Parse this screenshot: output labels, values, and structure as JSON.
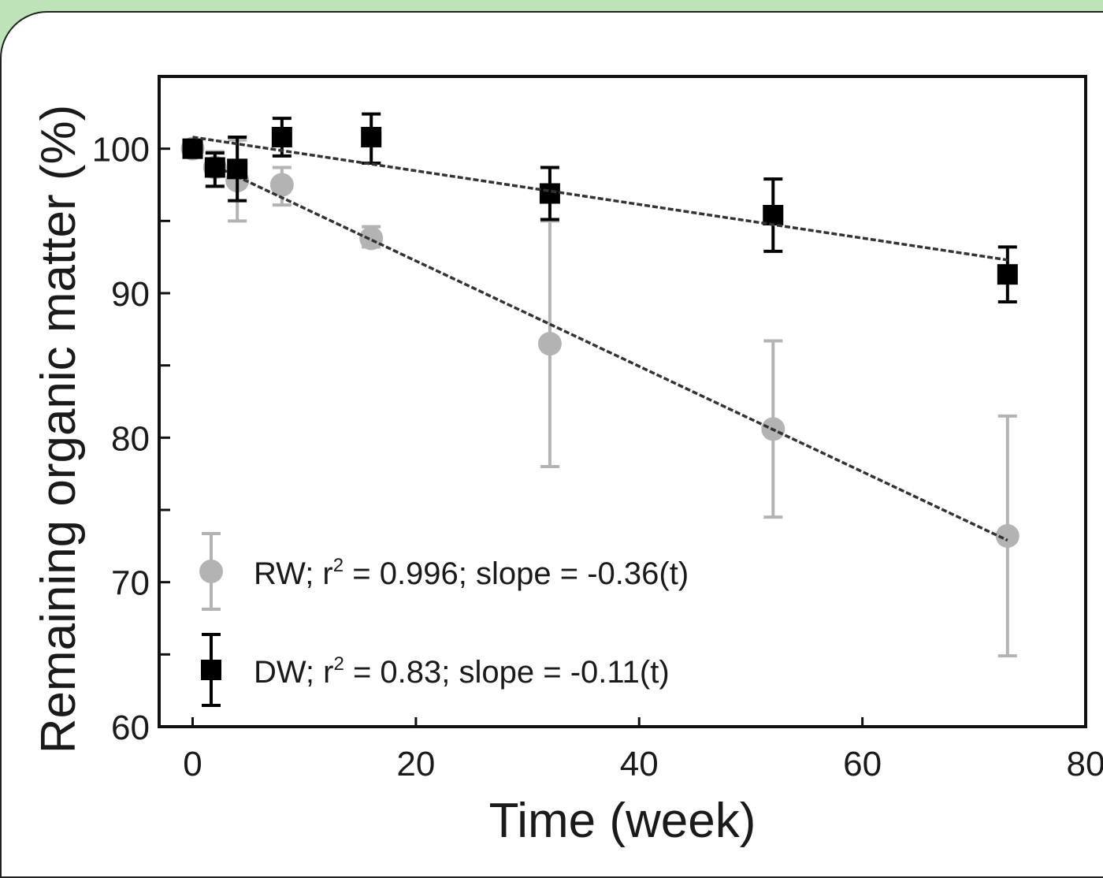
{
  "chart_data": {
    "type": "scatter",
    "title": "",
    "xlabel": "Time (week)",
    "ylabel": "Remaining organic matter (%)",
    "xlim": [
      -3,
      80
    ],
    "ylim": [
      60,
      105
    ],
    "x_ticks": [
      0,
      20,
      40,
      60,
      80
    ],
    "y_ticks": [
      60,
      70,
      80,
      90,
      100
    ],
    "grid": false,
    "legend_position": "bottom-left",
    "series": [
      {
        "id": "rw",
        "color": "#b3b3b3",
        "marker": "circle",
        "legend_text": "RW; r",
        "legend_sup": "2",
        "legend_rest": " = 0.996; slope = -0.36(t)",
        "x": [
          0,
          2,
          4,
          8,
          16,
          32,
          52,
          73
        ],
        "y": [
          100,
          98.7,
          97.8,
          97.5,
          93.8,
          86.5,
          80.6,
          73.2
        ],
        "err_low": [
          0,
          1.3,
          2.8,
          1.4,
          0.6,
          8.5,
          6.1,
          8.3
        ],
        "err_high": [
          0,
          1.1,
          2.8,
          1.2,
          0.8,
          8.5,
          6.1,
          8.3
        ],
        "fit": {
          "x": [
            2,
            73
          ],
          "y": [
            98.8,
            72.9
          ]
        }
      },
      {
        "id": "dw",
        "color": "#000000",
        "marker": "square",
        "legend_text": "DW; r",
        "legend_sup": "2",
        "legend_rest": " = 0.83; slope = -0.11(t)",
        "x": [
          0,
          2,
          4,
          8,
          16,
          32,
          52,
          73
        ],
        "y": [
          100,
          98.7,
          98.6,
          100.8,
          100.8,
          96.9,
          95.4,
          91.3
        ],
        "err_low": [
          0,
          1.3,
          2.2,
          1.3,
          1.8,
          1.8,
          2.5,
          1.9
        ],
        "err_high": [
          0,
          1.0,
          2.2,
          1.3,
          1.6,
          1.8,
          2.5,
          1.9
        ],
        "fit": {
          "x": [
            0,
            73
          ],
          "y": [
            100.8,
            92.3
          ]
        }
      }
    ]
  }
}
